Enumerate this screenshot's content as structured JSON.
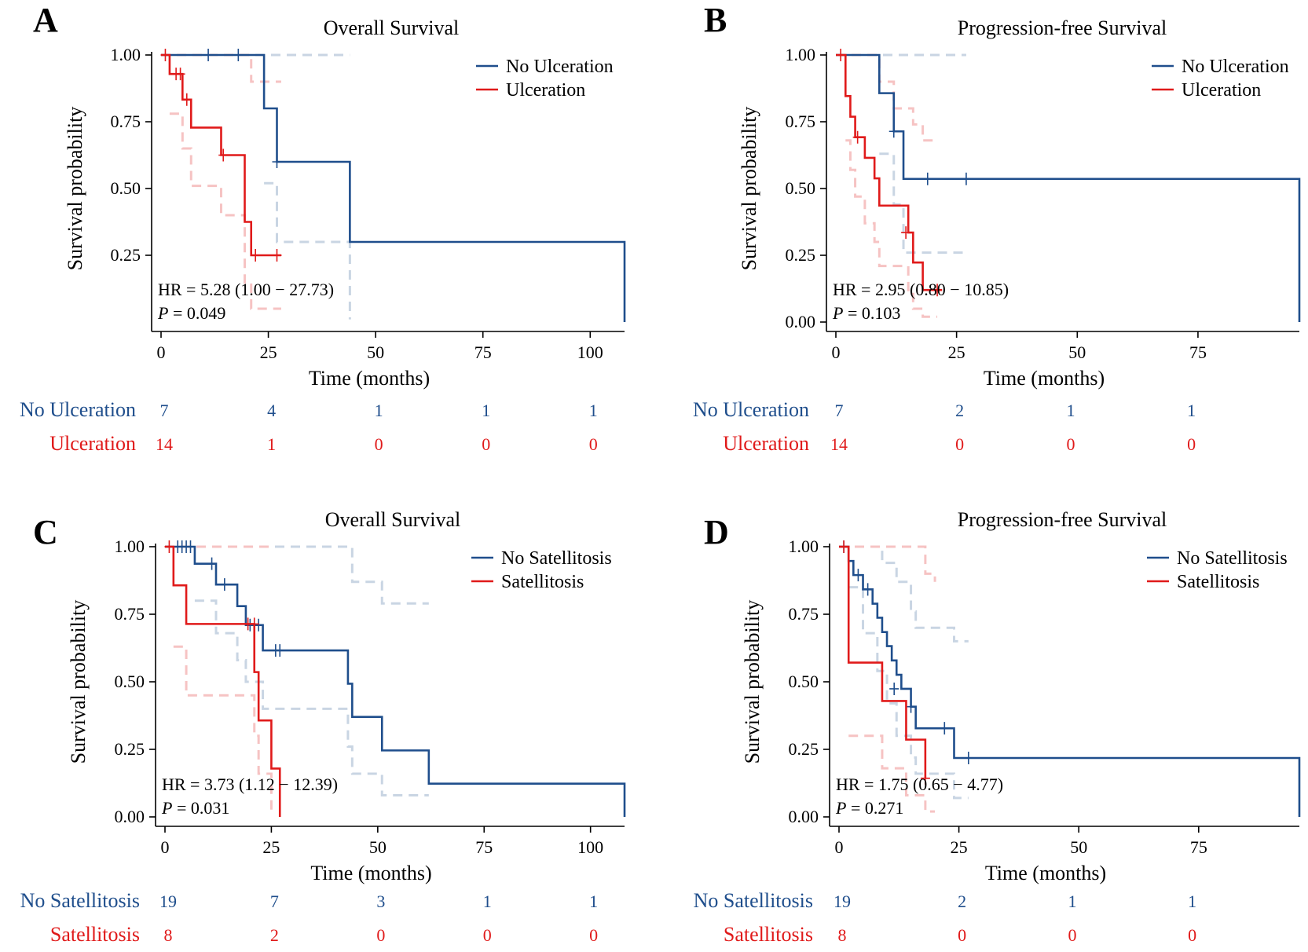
{
  "colors": {
    "group1": "#1f4e8c",
    "group2": "#e01a1a",
    "group1_ci": "#c9d5e3",
    "group2_ci": "#f6c3c3",
    "axis": "#000000"
  },
  "chart_data": [
    {
      "panel_label": "A",
      "type": "line",
      "subtype": "kaplan-meier",
      "title": "Overall Survival",
      "xlabel": "Time (months)",
      "ylabel": "Survival probability",
      "xlim": [
        0,
        108
      ],
      "ylim": [
        0,
        1
      ],
      "xticks": [
        "0",
        "25",
        "50",
        "75",
        "100"
      ],
      "yticks": [
        "0.25",
        "0.50",
        "0.75",
        "1.00"
      ],
      "legend": [
        "No Ulceration",
        "Ulceration"
      ],
      "annotation": {
        "hr": "HR = 5.28  (1.00  − 27.73)",
        "p_label": "P",
        "p_value": " = 0.049"
      },
      "series": [
        {
          "name": "No Ulceration",
          "steps": [
            [
              0,
              1
            ],
            [
              24,
              0.8
            ],
            [
              27,
              0.6
            ],
            [
              44,
              0.3
            ],
            [
              108,
              0
            ]
          ],
          "censors": [
            [
              11,
              1
            ],
            [
              18,
              1
            ],
            [
              27,
              0.6
            ]
          ]
        },
        {
          "name": "Ulceration",
          "steps": [
            [
              0,
              1
            ],
            [
              2,
              0.929
            ],
            [
              5,
              0.833
            ],
            [
              7,
              0.728
            ],
            [
              14,
              0.625
            ],
            [
              19.5,
              0.375
            ],
            [
              21,
              0.25
            ],
            [
              28,
              0.25
            ]
          ],
          "censors": [
            [
              1,
              1
            ],
            [
              3.5,
              0.929
            ],
            [
              4.5,
              0.929
            ],
            [
              6,
              0.833
            ],
            [
              14.5,
              0.625
            ],
            [
              22,
              0.25
            ],
            [
              27,
              0.25
            ]
          ]
        }
      ],
      "ci": [
        {
          "series": "No Ulceration",
          "upper": [
            [
              0,
              1
            ],
            [
              44,
              1
            ]
          ],
          "lower": [
            [
              24,
              0.52
            ],
            [
              27,
              0.3
            ],
            [
              44,
              0.01
            ]
          ]
        },
        {
          "series": "Ulceration",
          "upper": [
            [
              0,
              1
            ],
            [
              19.5,
              1
            ],
            [
              21,
              0.9
            ],
            [
              28,
              0.9
            ]
          ],
          "lower": [
            [
              2,
              0.78
            ],
            [
              5,
              0.65
            ],
            [
              7,
              0.51
            ],
            [
              14,
              0.4
            ],
            [
              19.5,
              0.14
            ],
            [
              21,
              0.05
            ],
            [
              28,
              0.05
            ]
          ]
        }
      ],
      "risk_table": {
        "x": [
          0,
          25,
          50,
          75,
          100
        ],
        "rows": [
          {
            "name": "No Ulceration",
            "values": [
              "7",
              "4",
              "1",
              "1",
              "1"
            ]
          },
          {
            "name": "Ulceration",
            "values": [
              "14",
              "1",
              "0",
              "0",
              "0"
            ]
          }
        ]
      }
    },
    {
      "panel_label": "B",
      "type": "line",
      "subtype": "kaplan-meier",
      "title": "Progression-free Survival",
      "xlabel": "Time (months)",
      "ylabel": "Survival probability",
      "xlim": [
        0,
        96
      ],
      "ylim": [
        0,
        1
      ],
      "xticks": [
        "0",
        "25",
        "50",
        "75"
      ],
      "yticks": [
        "0.00",
        "0.25",
        "0.50",
        "0.75",
        "1.00"
      ],
      "legend": [
        "No Ulceration",
        "Ulceration"
      ],
      "annotation": {
        "hr": "HR = 2.95  (0.80  − 10.85)",
        "p_label": "P",
        "p_value": " = 0.103"
      },
      "series": [
        {
          "name": "No Ulceration",
          "steps": [
            [
              0,
              1
            ],
            [
              9,
              0.857
            ],
            [
              12,
              0.714
            ],
            [
              14,
              0.536
            ],
            [
              96,
              0
            ]
          ],
          "censors": [
            [
              12,
              0.714
            ],
            [
              19,
              0.536
            ],
            [
              27,
              0.536
            ]
          ]
        },
        {
          "name": "Ulceration",
          "steps": [
            [
              0,
              1
            ],
            [
              2,
              0.846
            ],
            [
              3,
              0.769
            ],
            [
              4,
              0.692
            ],
            [
              6,
              0.615
            ],
            [
              8,
              0.538
            ],
            [
              9,
              0.436
            ],
            [
              15,
              0.335
            ],
            [
              16,
              0.223
            ],
            [
              18,
              0.12
            ],
            [
              22,
              0.12
            ]
          ],
          "censors": [
            [
              1,
              1
            ],
            [
              4.5,
              0.692
            ],
            [
              14.5,
              0.335
            ],
            [
              21,
              0.12
            ]
          ]
        }
      ],
      "ci": [
        {
          "series": "No Ulceration",
          "upper": [
            [
              0,
              1
            ],
            [
              27,
              1
            ]
          ],
          "lower": [
            [
              9,
              0.63
            ],
            [
              12,
              0.44
            ],
            [
              14,
              0.26
            ],
            [
              27,
              0.26
            ]
          ]
        },
        {
          "series": "Ulceration",
          "upper": [
            [
              0,
              1
            ],
            [
              9,
              0.9
            ],
            [
              12,
              0.8
            ],
            [
              16,
              0.74
            ],
            [
              18,
              0.68
            ],
            [
              21,
              0.68
            ]
          ],
          "lower": [
            [
              2,
              0.68
            ],
            [
              3,
              0.57
            ],
            [
              4,
              0.47
            ],
            [
              6,
              0.37
            ],
            [
              8,
              0.3
            ],
            [
              9,
              0.21
            ],
            [
              15,
              0.12
            ],
            [
              16,
              0.05
            ],
            [
              18,
              0.02
            ],
            [
              21,
              0.02
            ]
          ]
        }
      ],
      "risk_table": {
        "x": [
          0,
          25,
          48,
          73
        ],
        "rows": [
          {
            "name": "No Ulceration",
            "values": [
              "7",
              "2",
              "1",
              "1"
            ]
          },
          {
            "name": "Ulceration",
            "values": [
              "14",
              "0",
              "0",
              "0"
            ]
          }
        ]
      }
    },
    {
      "panel_label": "C",
      "type": "line",
      "subtype": "kaplan-meier",
      "title": "Overall Survival",
      "xlabel": "Time (months)",
      "ylabel": "Survival probability",
      "xlim": [
        0,
        108
      ],
      "ylim": [
        0,
        1
      ],
      "xticks": [
        "0",
        "25",
        "50",
        "75",
        "100"
      ],
      "yticks": [
        "0.00",
        "0.25",
        "0.50",
        "0.75",
        "1.00"
      ],
      "legend": [
        "No Satellitosis",
        "Satellitosis"
      ],
      "annotation": {
        "hr": "HR = 3.73  (1.12  − 12.39)",
        "p_label": "P",
        "p_value": " = 0.031"
      },
      "series": [
        {
          "name": "No Satellitosis",
          "steps": [
            [
              0,
              1
            ],
            [
              7,
              0.937
            ],
            [
              12,
              0.86
            ],
            [
              17,
              0.78
            ],
            [
              19,
              0.71
            ],
            [
              23,
              0.616
            ],
            [
              43,
              0.493
            ],
            [
              44,
              0.37
            ],
            [
              51,
              0.246
            ],
            [
              62,
              0.123
            ],
            [
              108,
              0
            ]
          ],
          "censors": [
            [
              3,
              1
            ],
            [
              4,
              1
            ],
            [
              5,
              1
            ],
            [
              6,
              1
            ],
            [
              11,
              0.937
            ],
            [
              14,
              0.86
            ],
            [
              20,
              0.71
            ],
            [
              22,
              0.71
            ],
            [
              26,
              0.616
            ],
            [
              27,
              0.616
            ]
          ]
        },
        {
          "name": "Satellitosis",
          "steps": [
            [
              0,
              1
            ],
            [
              2,
              0.857
            ],
            [
              5,
              0.714
            ],
            [
              19,
              0.714
            ],
            [
              21,
              0.536
            ],
            [
              22,
              0.357
            ],
            [
              25,
              0.179
            ],
            [
              27,
              0
            ]
          ],
          "censors": [
            [
              1,
              1
            ],
            [
              19.5,
              0.714
            ],
            [
              21,
              0.714
            ]
          ]
        }
      ],
      "ci": [
        {
          "series": "No Satellitosis",
          "upper": [
            [
              0,
              1
            ],
            [
              23,
              1
            ],
            [
              43,
              1
            ],
            [
              44,
              0.87
            ],
            [
              51,
              0.79
            ],
            [
              62,
              0.79
            ]
          ],
          "lower": [
            [
              7,
              0.8
            ],
            [
              12,
              0.68
            ],
            [
              17,
              0.58
            ],
            [
              19,
              0.5
            ],
            [
              23,
              0.4
            ],
            [
              43,
              0.26
            ],
            [
              44,
              0.16
            ],
            [
              51,
              0.08
            ],
            [
              62,
              0.08
            ]
          ]
        },
        {
          "series": "Satellitosis",
          "upper": [
            [
              0,
              1
            ],
            [
              25,
              1
            ]
          ],
          "lower": [
            [
              2,
              0.63
            ],
            [
              5,
              0.45
            ],
            [
              19,
              0.45
            ],
            [
              21,
              0.3
            ],
            [
              22,
              0.16
            ],
            [
              25,
              0.02
            ]
          ]
        }
      ],
      "risk_table": {
        "x": [
          0,
          25,
          50,
          75,
          100
        ],
        "rows": [
          {
            "name": "No Satellitosis",
            "values": [
              "19",
              "7",
              "3",
              "1",
              "1"
            ]
          },
          {
            "name": "Satellitosis",
            "values": [
              "8",
              "2",
              "0",
              "0",
              "0"
            ]
          }
        ]
      }
    },
    {
      "panel_label": "D",
      "type": "line",
      "subtype": "kaplan-meier",
      "title": "Progression-free Survival",
      "xlabel": "Time (months)",
      "ylabel": "Survival probability",
      "xlim": [
        0,
        96
      ],
      "ylim": [
        0,
        1
      ],
      "xticks": [
        "0",
        "25",
        "50",
        "75"
      ],
      "yticks": [
        "0.00",
        "0.25",
        "0.50",
        "0.75",
        "1.00"
      ],
      "legend": [
        "No Satellitosis",
        "Satellitosis"
      ],
      "annotation": {
        "hr": "HR = 1.75  (0.65  − 4.77)",
        "p_label": "P",
        "p_value": " = 0.271"
      },
      "series": [
        {
          "name": "No Satellitosis",
          "steps": [
            [
              0,
              1
            ],
            [
              2,
              0.947
            ],
            [
              3,
              0.895
            ],
            [
              5,
              0.842
            ],
            [
              7,
              0.789
            ],
            [
              8,
              0.737
            ],
            [
              9,
              0.684
            ],
            [
              10,
              0.632
            ],
            [
              11,
              0.579
            ],
            [
              12,
              0.526
            ],
            [
              13,
              0.474
            ],
            [
              15,
              0.408
            ],
            [
              16,
              0.328
            ],
            [
              24,
              0.218
            ],
            [
              96,
              0
            ]
          ],
          "censors": [
            [
              1,
              1
            ],
            [
              4,
              0.895
            ],
            [
              6,
              0.842
            ],
            [
              11.5,
              0.474
            ],
            [
              15,
              0.408
            ],
            [
              22,
              0.328
            ],
            [
              27,
              0.218
            ]
          ]
        },
        {
          "name": "Satellitosis",
          "steps": [
            [
              0,
              1
            ],
            [
              2,
              0.571
            ],
            [
              9,
              0.429
            ],
            [
              14,
              0.286
            ],
            [
              18,
              0.143
            ]
          ],
          "censors": [
            [
              1,
              1
            ],
            [
              18,
              0.143
            ]
          ]
        }
      ],
      "ci": [
        {
          "series": "No Satellitosis",
          "upper": [
            [
              0,
              1
            ],
            [
              7,
              1
            ],
            [
              9,
              0.94
            ],
            [
              12,
              0.87
            ],
            [
              15,
              0.76
            ],
            [
              16,
              0.7
            ],
            [
              24,
              0.65
            ],
            [
              27,
              0.65
            ]
          ],
          "lower": [
            [
              2,
              0.85
            ],
            [
              5,
              0.68
            ],
            [
              8,
              0.54
            ],
            [
              10,
              0.42
            ],
            [
              12,
              0.3
            ],
            [
              15,
              0.22
            ],
            [
              16,
              0.16
            ],
            [
              24,
              0.07
            ],
            [
              27,
              0.07
            ]
          ]
        },
        {
          "series": "Satellitosis",
          "upper": [
            [
              0,
              1
            ],
            [
              14,
              1
            ],
            [
              18,
              0.9
            ],
            [
              20,
              0.87
            ]
          ],
          "lower": [
            [
              2,
              0.3
            ],
            [
              9,
              0.18
            ],
            [
              14,
              0.08
            ],
            [
              18,
              0.02
            ],
            [
              20,
              0.02
            ]
          ]
        }
      ],
      "risk_table": {
        "x": [
          0,
          25,
          48,
          73
        ],
        "rows": [
          {
            "name": "No Satellitosis",
            "values": [
              "19",
              "2",
              "1",
              "1"
            ]
          },
          {
            "name": "Satellitosis",
            "values": [
              "8",
              "0",
              "0",
              "0"
            ]
          }
        ]
      }
    }
  ]
}
